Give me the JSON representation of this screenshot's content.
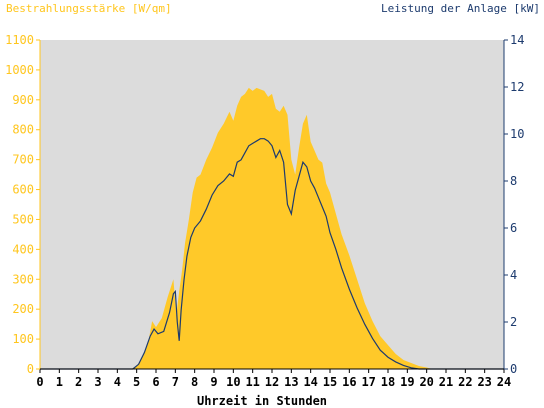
{
  "chart_data": {
    "type": "area",
    "left_title": "Bestrahlungsstärke [W/qm]",
    "right_title": "Leistung der Anlage [kW]",
    "xlabel": "Uhrzeit in Stunden",
    "xlim": [
      0,
      24
    ],
    "ylim_left": [
      0,
      1100
    ],
    "ylim_right": [
      0,
      14
    ],
    "x_ticks": [
      "0",
      "1",
      "2",
      "3",
      "4",
      "5",
      "6",
      "7",
      "8",
      "9",
      "10",
      "11",
      "12",
      "13",
      "14",
      "15",
      "16",
      "17",
      "18",
      "19",
      "20",
      "21",
      "22",
      "23",
      "24"
    ],
    "y_ticks_left": [
      "0",
      "100",
      "200",
      "300",
      "400",
      "500",
      "600",
      "700",
      "800",
      "900",
      "1000",
      "1100"
    ],
    "y_ticks_right": [
      "0",
      "2",
      "4",
      "6",
      "8",
      "10",
      "12",
      "14"
    ],
    "grid": false,
    "colors": {
      "plot_bg": "#dcdcdc",
      "irradiance": "#ffc929",
      "left_axis": "#ffc61e",
      "right_axis": "#1d3b6e",
      "power_line": "#1d3b6e"
    },
    "series": [
      {
        "name": "Bestrahlungsstärke [W/qm]",
        "axis": "left",
        "x": [
          0,
          4.7,
          5.0,
          5.3,
          5.6,
          5.8,
          6.0,
          6.3,
          6.6,
          6.9,
          7.05,
          7.2,
          7.35,
          7.5,
          7.7,
          7.9,
          8.1,
          8.3,
          8.6,
          8.9,
          9.2,
          9.5,
          9.8,
          10.0,
          10.2,
          10.4,
          10.6,
          10.8,
          11.0,
          11.2,
          11.4,
          11.6,
          11.8,
          12.0,
          12.2,
          12.4,
          12.6,
          12.8,
          13.0,
          13.2,
          13.4,
          13.6,
          13.8,
          14.0,
          14.2,
          14.4,
          14.6,
          14.8,
          15.0,
          15.3,
          15.6,
          16.0,
          16.4,
          16.8,
          17.2,
          17.6,
          18.0,
          18.4,
          18.8,
          19.2,
          19.6,
          20.0,
          20.3,
          20.6,
          24
        ],
        "y": [
          0,
          0,
          10,
          40,
          90,
          160,
          140,
          170,
          240,
          300,
          180,
          260,
          330,
          420,
          500,
          590,
          640,
          650,
          700,
          740,
          790,
          820,
          860,
          830,
          880,
          910,
          920,
          940,
          930,
          940,
          935,
          930,
          910,
          920,
          870,
          860,
          880,
          850,
          700,
          650,
          740,
          820,
          850,
          760,
          730,
          700,
          690,
          620,
          590,
          520,
          450,
          380,
          300,
          220,
          160,
          110,
          80,
          50,
          30,
          20,
          10,
          5,
          0,
          0,
          0
        ]
      },
      {
        "name": "Leistung der Anlage [kW]",
        "axis": "right",
        "x": [
          0,
          4.8,
          5.1,
          5.4,
          5.7,
          5.9,
          6.1,
          6.4,
          6.7,
          6.9,
          7.0,
          7.1,
          7.2,
          7.3,
          7.45,
          7.6,
          7.8,
          8.0,
          8.3,
          8.6,
          8.9,
          9.2,
          9.5,
          9.8,
          10.0,
          10.2,
          10.4,
          10.6,
          10.8,
          11.0,
          11.2,
          11.4,
          11.6,
          11.8,
          12.0,
          12.2,
          12.4,
          12.6,
          12.8,
          13.0,
          13.2,
          13.4,
          13.6,
          13.8,
          14.0,
          14.2,
          14.4,
          14.6,
          14.8,
          15.0,
          15.3,
          15.6,
          16.0,
          16.4,
          16.8,
          17.2,
          17.6,
          18.0,
          18.4,
          18.8,
          19.2,
          19.6,
          20.0,
          20.3,
          24
        ],
        "y": [
          0,
          0,
          0.2,
          0.7,
          1.4,
          1.7,
          1.5,
          1.6,
          2.4,
          3.2,
          3.3,
          2.0,
          1.2,
          2.5,
          3.8,
          4.8,
          5.6,
          6.0,
          6.3,
          6.8,
          7.4,
          7.8,
          8.0,
          8.3,
          8.2,
          8.8,
          8.9,
          9.2,
          9.5,
          9.6,
          9.7,
          9.8,
          9.8,
          9.7,
          9.5,
          9.0,
          9.3,
          8.8,
          7.0,
          6.6,
          7.6,
          8.2,
          8.8,
          8.6,
          8.0,
          7.7,
          7.3,
          6.9,
          6.5,
          5.8,
          5.1,
          4.3,
          3.4,
          2.6,
          1.9,
          1.3,
          0.8,
          0.5,
          0.3,
          0.15,
          0.05,
          0,
          0,
          0,
          0
        ]
      }
    ]
  }
}
